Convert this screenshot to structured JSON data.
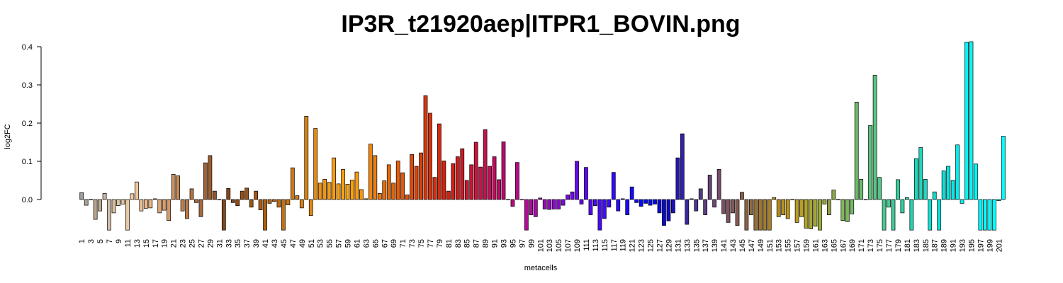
{
  "chart_data": {
    "type": "bar",
    "title": "IP3R_t21920aep|ITPR1_BOVIN.png",
    "xlabel": "metacells",
    "ylabel": "log2FC",
    "ylim": [
      -0.08,
      0.42
    ],
    "yticks": [
      0.0,
      0.1,
      0.2,
      0.3,
      0.4
    ],
    "ytick_labels": [
      "0.0",
      "0.1",
      "0.2",
      "0.3",
      "0.4"
    ],
    "xtick_labels": [
      "1",
      "3",
      "5",
      "7",
      "9",
      "11",
      "13",
      "15",
      "17",
      "19",
      "21",
      "23",
      "25",
      "27",
      "29",
      "31",
      "33",
      "35",
      "37",
      "39",
      "41",
      "43",
      "45",
      "47",
      "49",
      "51",
      "53",
      "55",
      "57",
      "59",
      "61",
      "63",
      "65",
      "67",
      "69",
      "71",
      "73",
      "75",
      "77",
      "79",
      "81",
      "83",
      "85",
      "87",
      "89",
      "91",
      "93",
      "95",
      "97",
      "99",
      "101",
      "103",
      "105",
      "107",
      "109",
      "111",
      "113",
      "115",
      "117",
      "119",
      "121",
      "123",
      "125",
      "127",
      "129",
      "131",
      "133",
      "135",
      "137",
      "139",
      "141",
      "143",
      "145",
      "147",
      "149",
      "151",
      "153",
      "155",
      "157",
      "159",
      "161",
      "163",
      "165",
      "167",
      "169",
      "171",
      "173",
      "175",
      "177",
      "179",
      "181",
      "183",
      "185",
      "187",
      "189",
      "191",
      "193",
      "195",
      "197",
      "199",
      "201"
    ],
    "grid": false,
    "values": [
      0.018,
      -0.015,
      0.0,
      -0.052,
      -0.03,
      0.016,
      -0.08,
      -0.035,
      -0.016,
      -0.012,
      -0.08,
      0.015,
      0.046,
      -0.03,
      -0.023,
      -0.022,
      0.002,
      -0.035,
      -0.028,
      -0.055,
      0.066,
      0.062,
      -0.03,
      -0.05,
      0.028,
      -0.008,
      -0.045,
      0.096,
      0.115,
      0.022,
      0.0,
      -0.08,
      0.029,
      -0.008,
      -0.016,
      0.022,
      0.03,
      -0.02,
      0.022,
      -0.027,
      -0.08,
      -0.01,
      -0.005,
      -0.02,
      -0.08,
      -0.014,
      0.083,
      0.01,
      -0.022,
      0.218,
      -0.042,
      0.186,
      0.043,
      0.053,
      0.045,
      0.109,
      0.041,
      0.079,
      0.04,
      0.051,
      0.072,
      0.026,
      0.002,
      0.145,
      0.115,
      0.016,
      0.049,
      0.091,
      0.043,
      0.101,
      0.07,
      0.012,
      0.118,
      0.087,
      0.122,
      0.272,
      0.226,
      0.058,
      0.198,
      0.101,
      0.022,
      0.094,
      0.112,
      0.133,
      0.05,
      0.091,
      0.15,
      0.085,
      0.183,
      0.087,
      0.112,
      0.052,
      0.151,
      0.0,
      -0.018,
      0.097,
      0.0,
      -0.08,
      -0.04,
      -0.045,
      0.004,
      -0.025,
      -0.026,
      -0.025,
      -0.025,
      -0.015,
      0.012,
      0.02,
      0.1,
      -0.012,
      0.084,
      -0.04,
      -0.016,
      -0.08,
      -0.05,
      -0.02,
      0.071,
      -0.03,
      0.002,
      -0.04,
      0.033,
      -0.008,
      -0.018,
      -0.01,
      -0.015,
      -0.012,
      -0.035,
      -0.068,
      -0.056,
      -0.035,
      0.109,
      0.172,
      -0.065,
      0.002,
      -0.03,
      0.028,
      -0.04,
      0.064,
      -0.02,
      0.079,
      -0.037,
      -0.06,
      -0.035,
      -0.068,
      0.019,
      -0.08,
      -0.04,
      -0.08,
      -0.08,
      -0.08,
      -0.08,
      0.005,
      -0.045,
      -0.04,
      -0.05,
      0.0,
      -0.06,
      -0.045,
      -0.075,
      -0.077,
      -0.07,
      -0.08,
      -0.012,
      -0.04,
      0.025,
      0.0,
      -0.055,
      -0.058,
      -0.038,
      0.255,
      0.053,
      0.0,
      0.194,
      0.325,
      0.058,
      -0.08,
      -0.02,
      -0.08,
      0.052,
      -0.035,
      0.005,
      -0.08,
      0.107,
      0.136,
      0.053,
      -0.08,
      0.02,
      -0.08,
      0.075,
      0.087,
      0.05,
      0.143,
      -0.01,
      0.412,
      0.413,
      0.093,
      -0.08,
      -0.08,
      -0.08,
      -0.08,
      -0.003,
      0.166
    ],
    "colors": [
      "#9e9e9e",
      "#a8a395",
      "#b2a68b",
      "#b9a489",
      "#c0ad97",
      "#c9b8a4",
      "#d2c0aa",
      "#d8c0a0",
      "#dcc1a0",
      "#e0c29e",
      "#e6c8a2",
      "#efcfa6",
      "#f2c79a",
      "#f0c08e",
      "#ecb888",
      "#e8b282",
      "#e2aa7a",
      "#dda475",
      "#d89e6d",
      "#d29866",
      "#cb9160",
      "#c58a58",
      "#c08453",
      "#b87c4a",
      "#b27543",
      "#ac6e3e",
      "#a6683a",
      "#a06234",
      "#9a5c2e",
      "#93552a",
      "#8c4e24",
      "#86481f",
      "#86451c",
      "#8a4818",
      "#8f4c16",
      "#944f15",
      "#995315",
      "#9e5614",
      "#a35913",
      "#a85d12",
      "#ad6111",
      "#b26411",
      "#b86812",
      "#bd6c12",
      "#c27013",
      "#c77414",
      "#cc7814",
      "#d27c13",
      "#d78013",
      "#dc8413",
      "#e18813",
      "#e68c13",
      "#ea9012",
      "#ee9412",
      "#f29812",
      "#f69c12",
      "#f99f10",
      "#fba20e",
      "#fca40c",
      "#fca00c",
      "#fb9a0b",
      "#f9930a",
      "#f68c0a",
      "#f3850a",
      "#f07e0a",
      "#ed770a",
      "#ea700a",
      "#e76a0a",
      "#e5640a",
      "#e35e0a",
      "#e1580a",
      "#df520a",
      "#dd4c0a",
      "#db460a",
      "#da400b",
      "#d93a0b",
      "#d8340b",
      "#d72e0b",
      "#d6280c",
      "#d5220c",
      "#d4200e",
      "#d21e16",
      "#d01c1e",
      "#ce1a26",
      "#cc182e",
      "#ca1636",
      "#c8143e",
      "#c61246",
      "#c4104e",
      "#c20e56",
      "#c00c5e",
      "#be0a66",
      "#bc0a6e",
      "#ba0a76",
      "#b80a7e",
      "#b60a86",
      "#b40a8e",
      "#b20a96",
      "#ae0a9e",
      "#a80aa6",
      "#a10aae",
      "#9a0ab6",
      "#930abe",
      "#8c0ac6",
      "#850ace",
      "#7e0ad6",
      "#770ade",
      "#700ae4",
      "#690ae8",
      "#620aec",
      "#5b0af0",
      "#540af2",
      "#4d0af4",
      "#460af6",
      "#3f0af8",
      "#380afa",
      "#310afb",
      "#2a0afc",
      "#230afd",
      "#1c0afe",
      "#150aff",
      "#0e0aff",
      "#070aff",
      "#000aff",
      "#000af0",
      "#000ae4",
      "#050ad8",
      "#0a0acc",
      "#100ac0",
      "#1a10b8",
      "#2418b0",
      "#2e20a8",
      "#3828a0",
      "#423098",
      "#4c3890",
      "#563c88",
      "#5e4080",
      "#664478",
      "#6e4870",
      "#744c6a",
      "#785064",
      "#7c545e",
      "#805858",
      "#845c52",
      "#88604c",
      "#8c6446",
      "#906840",
      "#966e3a",
      "#9c7434",
      "#a27a2e",
      "#a88028",
      "#ae8624",
      "#b48c20",
      "#ba921c",
      "#be9418",
      "#c09616",
      "#bc9a1c",
      "#b69e22",
      "#b0a228",
      "#aaa62e",
      "#a4aa34",
      "#9eae3a",
      "#98a640",
      "#929e46",
      "#8ca64c",
      "#86ae52",
      "#80b658",
      "#7ab85e",
      "#74ba64",
      "#6ebc6a",
      "#68be70",
      "#62c076",
      "#5cc27c",
      "#56c482",
      "#50c688",
      "#4ac88e",
      "#44ca94",
      "#3ecc9a",
      "#38cea0",
      "#32d0a6",
      "#2cd2ac",
      "#26d4b2",
      "#20d6b8",
      "#1cd8be",
      "#18dac4",
      "#14dcca",
      "#10ded0",
      "#0ce0d6",
      "#08e2dc",
      "#06e4e0",
      "#04e8e6",
      "#02ecec",
      "#00f0f0",
      "#00f4f4",
      "#00f8f8",
      "#00fafa",
      "#00fcfc",
      "#00fefe",
      "#00ffff",
      "#00ffff",
      "#00ffff",
      "#00ffff",
      "#00ffff",
      "#00ffff",
      "#00ffff",
      "#00ffff"
    ]
  }
}
